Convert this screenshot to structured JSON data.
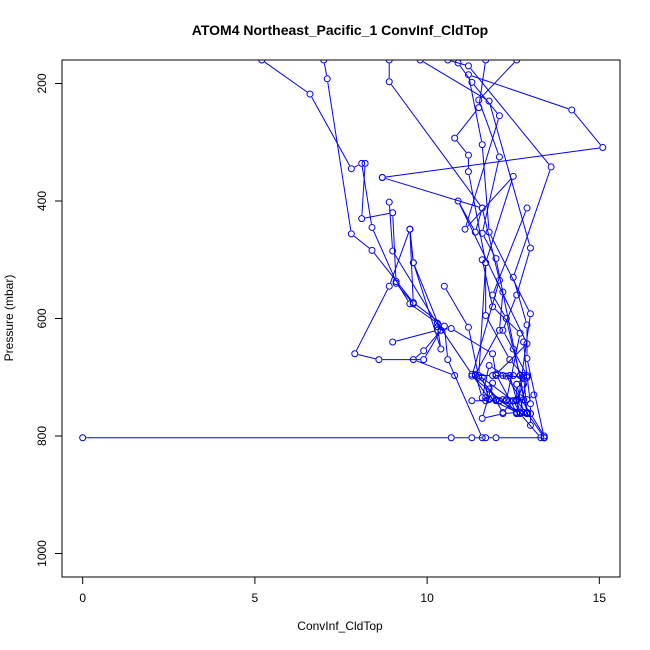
{
  "chart_data": {
    "type": "line",
    "title": "ATOM4 Northeast_Pacific_1 ConvInf_CldTop",
    "xlabel": "ConvInf_CldTop",
    "ylabel": "Pressure (mbar)",
    "xlim": [
      -0.6,
      15.6
    ],
    "ylim": [
      1040,
      160
    ],
    "y_reversed": true,
    "xticks": [
      0,
      5,
      10,
      15
    ],
    "yticks": [
      200,
      400,
      600,
      800,
      1000
    ],
    "colors": {
      "series": "#0000ff",
      "frame": "#000000"
    },
    "series": [
      {
        "points": [
          [
            5.2,
            160
          ],
          [
            6.6,
            218
          ],
          [
            7.8,
            345
          ],
          [
            8.1,
            336
          ],
          [
            8.4,
            445
          ],
          [
            9.1,
            537
          ],
          [
            9.5,
            575
          ],
          [
            10.3,
            608
          ],
          [
            11.3,
            695
          ],
          [
            11.8,
            737
          ],
          [
            12.7,
            762
          ],
          [
            13.3,
            803
          ]
        ]
      },
      {
        "points": [
          [
            7.0,
            160
          ],
          [
            7.1,
            192
          ],
          [
            7.8,
            456
          ],
          [
            8.4,
            484
          ],
          [
            9.6,
            573
          ],
          [
            10.5,
            613
          ],
          [
            10.6,
            670
          ],
          [
            11.6,
            803
          ]
        ]
      },
      {
        "points": [
          [
            8.9,
            160
          ],
          [
            8.9,
            197
          ],
          [
            11.6,
            412
          ],
          [
            11.4,
            453
          ],
          [
            10.9,
            400
          ],
          [
            12.9,
            643
          ],
          [
            12.0,
            695
          ],
          [
            12.6,
            760
          ]
        ]
      },
      {
        "points": [
          [
            8.7,
            360
          ],
          [
            15.1,
            309
          ],
          [
            14.2,
            245
          ],
          [
            11.2,
            185
          ],
          [
            11.6,
            304
          ],
          [
            11.8,
            453
          ],
          [
            13.0,
            592
          ],
          [
            12.6,
            760
          ]
        ]
      },
      {
        "points": [
          [
            10.6,
            160
          ],
          [
            11.2,
            170
          ],
          [
            13.6,
            342
          ],
          [
            12.5,
            530
          ],
          [
            12.9,
            611
          ],
          [
            12.9,
            668
          ],
          [
            13.4,
            803
          ]
        ]
      },
      {
        "points": [
          [
            11.7,
            160
          ],
          [
            11.5,
            241
          ],
          [
            10.8,
            293
          ],
          [
            11.2,
            322
          ],
          [
            11.2,
            350
          ],
          [
            11.7,
            505
          ],
          [
            11.7,
            595
          ],
          [
            12.4,
            670
          ],
          [
            12.8,
            697
          ],
          [
            12.9,
            760
          ]
        ]
      },
      {
        "points": [
          [
            10.9,
            165
          ],
          [
            11.3,
            198
          ],
          [
            12.1,
            255
          ],
          [
            11.1,
            448
          ],
          [
            12.5,
            358
          ],
          [
            11.7,
            505
          ],
          [
            11.5,
            697
          ],
          [
            12.5,
            740
          ]
        ]
      },
      {
        "points": [
          [
            9.8,
            160
          ],
          [
            11.8,
            230
          ],
          [
            13.0,
            480
          ],
          [
            12.6,
            560
          ],
          [
            12.2,
            620
          ],
          [
            12.9,
            697
          ],
          [
            13.0,
            745
          ],
          [
            13.0,
            782
          ]
        ]
      },
      {
        "points": [
          [
            12.6,
            160
          ],
          [
            11.5,
            228
          ],
          [
            12.1,
            325
          ],
          [
            11.6,
            455
          ],
          [
            12.0,
            498
          ],
          [
            12.9,
            760
          ],
          [
            13.4,
            803
          ]
        ]
      },
      {
        "points": [
          [
            8.2,
            336
          ],
          [
            8.1,
            430
          ],
          [
            9.0,
            420
          ],
          [
            9.1,
            540
          ],
          [
            9.6,
            575
          ],
          [
            9.5,
            448
          ],
          [
            9.6,
            505
          ],
          [
            10.4,
            652
          ],
          [
            10.3,
            614
          ]
        ]
      },
      {
        "points": [
          [
            8.9,
            402
          ],
          [
            9.0,
            485
          ],
          [
            10.4,
            620
          ],
          [
            9.9,
            670
          ],
          [
            8.6,
            670
          ],
          [
            7.9,
            660
          ],
          [
            8.9,
            545
          ],
          [
            9.5,
            448
          ]
        ]
      },
      {
        "points": [
          [
            8.7,
            360
          ],
          [
            11.6,
            412
          ],
          [
            12.1,
            535
          ],
          [
            11.3,
            698
          ],
          [
            12.6,
            762
          ]
        ]
      },
      {
        "points": [
          [
            9.0,
            640
          ],
          [
            10.3,
            620
          ],
          [
            10.7,
            617
          ],
          [
            11.9,
            660
          ],
          [
            12.0,
            697
          ],
          [
            12.9,
            700
          ]
        ]
      },
      {
        "points": [
          [
            9.5,
            448
          ],
          [
            9.6,
            505
          ],
          [
            10.4,
            620
          ],
          [
            9.9,
            655
          ],
          [
            9.6,
            670
          ],
          [
            10.8,
            697
          ]
        ]
      },
      {
        "points": [
          [
            10.5,
            545
          ],
          [
            11.2,
            615
          ],
          [
            11.5,
            700
          ],
          [
            12.1,
            740
          ],
          [
            12.7,
            760
          ]
        ]
      },
      {
        "points": [
          [
            0.0,
            803
          ],
          [
            10.7,
            803
          ],
          [
            11.3,
            803
          ],
          [
            11.7,
            803
          ],
          [
            12.0,
            803
          ],
          [
            13.4,
            803
          ]
        ]
      },
      {
        "points": [
          [
            11.6,
            500
          ],
          [
            11.9,
            580
          ],
          [
            12.7,
            625
          ],
          [
            12.3,
            740
          ],
          [
            12.6,
            762
          ],
          [
            12.9,
            762
          ]
        ]
      },
      {
        "points": [
          [
            12.9,
            412
          ],
          [
            11.9,
            560
          ],
          [
            12.3,
            600
          ],
          [
            12.5,
            652
          ],
          [
            12.7,
            697
          ],
          [
            12.8,
            738
          ]
        ]
      },
      {
        "points": [
          [
            11.6,
            700
          ],
          [
            11.8,
            738
          ],
          [
            12.1,
            740
          ],
          [
            12.3,
            738
          ],
          [
            12.5,
            740
          ],
          [
            12.6,
            738
          ],
          [
            12.9,
            738
          ],
          [
            13.1,
            730
          ]
        ]
      },
      {
        "points": [
          [
            11.7,
            735
          ],
          [
            11.8,
            720
          ],
          [
            12.0,
            740
          ],
          [
            12.2,
            760
          ],
          [
            12.5,
            740
          ],
          [
            12.7,
            760
          ],
          [
            12.9,
            700
          ],
          [
            12.8,
            640
          ]
        ]
      },
      {
        "points": [
          [
            12.4,
            697
          ],
          [
            12.7,
            760
          ],
          [
            12.9,
            760
          ],
          [
            13.0,
            762
          ],
          [
            13.4,
            800
          ]
        ]
      },
      {
        "points": [
          [
            11.9,
            710
          ],
          [
            11.6,
            770
          ],
          [
            12.2,
            762
          ],
          [
            12.6,
            760
          ],
          [
            12.8,
            760
          ],
          [
            12.6,
            712
          ]
        ]
      },
      {
        "points": [
          [
            12.2,
            555
          ],
          [
            12.1,
            620
          ],
          [
            11.4,
            695
          ],
          [
            11.6,
            735
          ],
          [
            11.8,
            680
          ],
          [
            12.3,
            698
          ],
          [
            12.7,
            735
          ],
          [
            13.0,
            762
          ]
        ]
      },
      {
        "points": [
          [
            11.3,
            740
          ],
          [
            11.7,
            740
          ],
          [
            11.9,
            735
          ],
          [
            12.0,
            738
          ],
          [
            12.2,
            738
          ],
          [
            12.4,
            740
          ],
          [
            12.6,
            740
          ],
          [
            12.6,
            712
          ],
          [
            12.8,
            700
          ]
        ]
      },
      {
        "points": [
          [
            11.4,
            697
          ],
          [
            11.9,
            697
          ],
          [
            12.2,
            697
          ],
          [
            12.5,
            697
          ],
          [
            12.7,
            697
          ],
          [
            12.8,
            712
          ],
          [
            12.6,
            740
          ],
          [
            12.9,
            762
          ]
        ]
      }
    ]
  }
}
